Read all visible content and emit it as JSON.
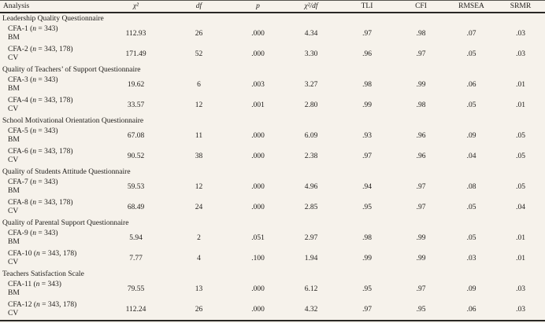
{
  "header": {
    "analysis": "Analysis",
    "chi2": "χ²",
    "df": "df",
    "p": "p",
    "chi2_df": "χ²/df",
    "tli": "TLI",
    "cfi": "CFI",
    "rmsea": "RMSEA",
    "srmr": "SRMR"
  },
  "colors": {
    "background": "#f6f2eb",
    "text": "#1f1d1a",
    "rule": "#2a2825"
  },
  "sections": [
    {
      "title": "Leadership Quality Questionnaire",
      "rows": [
        {
          "label_pre": "CFA-1 (",
          "label_n": "n",
          "label_post": " = 343)",
          "model": "BM",
          "chi2": "112.93",
          "df": "26",
          "p": ".000",
          "chi2_df": "4.34",
          "tli": ".97",
          "cfi": ".98",
          "rmsea": ".07",
          "srmr": ".03"
        },
        {
          "label_pre": "CFA-2 (",
          "label_n": "n",
          "label_post": " = 343, 178)",
          "model": "CV",
          "chi2": "171.49",
          "df": "52",
          "p": ".000",
          "chi2_df": "3.30",
          "tli": ".96",
          "cfi": ".97",
          "rmsea": ".05",
          "srmr": ".03"
        }
      ]
    },
    {
      "title": "Quality of Teachers’ of Support Questionnaire",
      "rows": [
        {
          "label_pre": "CFA-3 (",
          "label_n": "n",
          "label_post": " = 343)",
          "model": "BM",
          "chi2": "19.62",
          "df": "6",
          "p": ".003",
          "chi2_df": "3.27",
          "tli": ".98",
          "cfi": ".99",
          "rmsea": ".06",
          "srmr": ".01"
        },
        {
          "label_pre": "CFA-4 (",
          "label_n": "n",
          "label_post": " = 343, 178)",
          "model": "CV",
          "chi2": "33.57",
          "df": "12",
          "p": ".001",
          "chi2_df": "2.80",
          "tli": ".99",
          "cfi": ".98",
          "rmsea": ".05",
          "srmr": ".01"
        }
      ]
    },
    {
      "title": "School Motivational Orientation Questionnaire",
      "rows": [
        {
          "label_pre": "CFA-5 (",
          "label_n": "n",
          "label_post": " = 343)",
          "model": "BM",
          "chi2": "67.08",
          "df": "11",
          "p": ".000",
          "chi2_df": "6.09",
          "tli": ".93",
          "cfi": ".96",
          "rmsea": ".09",
          "srmr": ".05"
        },
        {
          "label_pre": "CFA-6 (",
          "label_n": "n",
          "label_post": " = 343, 178)",
          "model": "CV",
          "chi2": "90.52",
          "df": "38",
          "p": ".000",
          "chi2_df": "2.38",
          "tli": ".97",
          "cfi": ".96",
          "rmsea": ".04",
          "srmr": ".05"
        }
      ]
    },
    {
      "title": "Quality of Students Attitude Questionnaire",
      "rows": [
        {
          "label_pre": "CFA-7 (",
          "label_n": "n",
          "label_post": " = 343)",
          "model": "BM",
          "chi2": "59.53",
          "df": "12",
          "p": ".000",
          "chi2_df": "4.96",
          "tli": ".94",
          "cfi": ".97",
          "rmsea": ".08",
          "srmr": ".05"
        },
        {
          "label_pre": "CFA-8 (",
          "label_n": "n",
          "label_post": " = 343, 178)",
          "model": "CV",
          "chi2": "68.49",
          "df": "24",
          "p": ".000",
          "chi2_df": "2.85",
          "tli": ".95",
          "cfi": ".97",
          "rmsea": ".05",
          "srmr": ".04"
        }
      ]
    },
    {
      "title": "Quality of Parental Support Questionnaire",
      "rows": [
        {
          "label_pre": "CFA-9 (",
          "label_n": "n",
          "label_post": " = 343)",
          "model": "BM",
          "chi2": "5.94",
          "df": "2",
          "p": ".051",
          "chi2_df": "2.97",
          "tli": ".98",
          "cfi": ".99",
          "rmsea": ".05",
          "srmr": ".01"
        },
        {
          "label_pre": "CFA-10 (",
          "label_n": "n",
          "label_post": " = 343, 178)",
          "model": "CV",
          "chi2": "7.77",
          "df": "4",
          "p": ".100",
          "chi2_df": "1.94",
          "tli": ".99",
          "cfi": ".99",
          "rmsea": ".03",
          "srmr": ".01"
        }
      ]
    },
    {
      "title": "Teachers Satisfaction Scale",
      "rows": [
        {
          "label_pre": "CFA-11 (",
          "label_n": "n",
          "label_post": " = 343)",
          "model": "BM",
          "chi2": "79.55",
          "df": "13",
          "p": ".000",
          "chi2_df": "6.12",
          "tli": ".95",
          "cfi": ".97",
          "rmsea": ".09",
          "srmr": ".03"
        },
        {
          "label_pre": "CFA-12 (",
          "label_n": "n",
          "label_post": " = 343, 178)",
          "model": "CV",
          "chi2": "112.24",
          "df": "26",
          "p": ".000",
          "chi2_df": "4.32",
          "tli": ".97",
          "cfi": ".95",
          "rmsea": ".06",
          "srmr": ".03"
        }
      ]
    }
  ]
}
